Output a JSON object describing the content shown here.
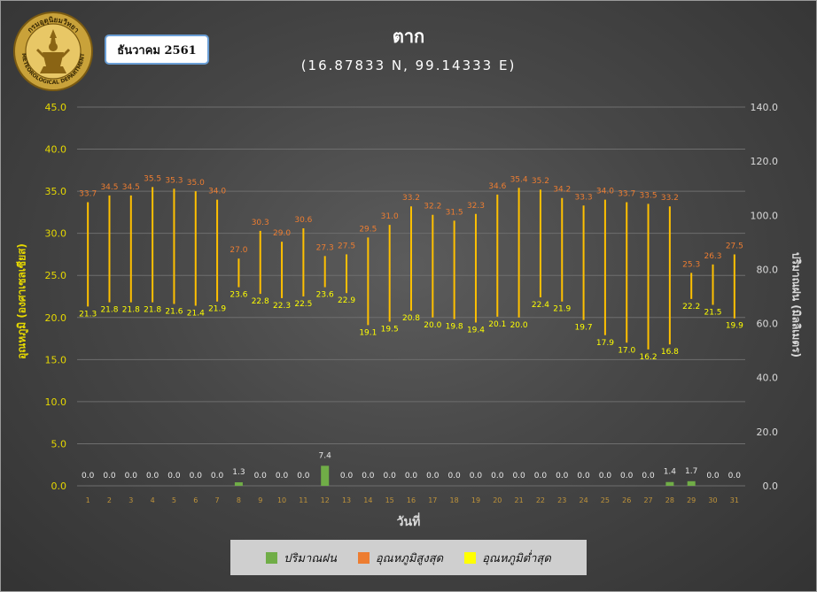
{
  "header": {
    "month_label": "ธันวาคม 2561",
    "station": "ตาก",
    "coordinates": "(16.87833 N, 99.14333 E)"
  },
  "logo": {
    "top_text": "กรมอุตุนิยมวิทยา",
    "bottom_text": "METEOROLOGICAL DEPARTMENT"
  },
  "colors": {
    "rain": "#70ad47",
    "tmax": "#ed7d31",
    "tmin": "#ffff00",
    "range_line": "#ffc000",
    "left_axis": "#e6d800",
    "right_axis": "#d9d9d9",
    "grid": "#6e6e6e"
  },
  "chart_data": {
    "type": "bar",
    "title": "ตาก",
    "subtitle": "(16.87833 N, 99.14333 E)",
    "xlabel": "วันที่",
    "ylabel_left": "อุณหภูมิ (องศาเซลเซียส)",
    "ylabel_right": "ปริมาณฝน (มิลลิเมตร)",
    "ylim_left": [
      0,
      45
    ],
    "yticks_left": [
      "0.0",
      "5.0",
      "10.0",
      "15.0",
      "20.0",
      "25.0",
      "30.0",
      "35.0",
      "40.0",
      "45.0"
    ],
    "ylim_right": [
      0,
      140
    ],
    "yticks_right": [
      "0.0",
      "20.0",
      "40.0",
      "60.0",
      "80.0",
      "100.0",
      "120.0",
      "140.0"
    ],
    "grid": true,
    "legend_position": "bottom",
    "categories": [
      "1",
      "2",
      "3",
      "4",
      "5",
      "6",
      "7",
      "8",
      "9",
      "10",
      "11",
      "12",
      "13",
      "14",
      "15",
      "16",
      "17",
      "18",
      "19",
      "20",
      "21",
      "22",
      "23",
      "24",
      "25",
      "26",
      "27",
      "28",
      "29",
      "30",
      "31"
    ],
    "series": [
      {
        "name": "ปริมาณฝน",
        "type": "bar",
        "axis": "right",
        "values": [
          0.0,
          0.0,
          0.0,
          0.0,
          0.0,
          0.0,
          0.0,
          1.3,
          0.0,
          0.0,
          0.0,
          7.4,
          0.0,
          0.0,
          0.0,
          0.0,
          0.0,
          0.0,
          0.0,
          0.0,
          0.0,
          0.0,
          0.0,
          0.0,
          0.0,
          0.0,
          0.0,
          1.4,
          1.7,
          0.0,
          0.0
        ],
        "labels": [
          "0.0",
          "0.0",
          "0.0",
          "0.0",
          "0.0",
          "0.0",
          "0.0",
          "1.3",
          "0.0",
          "0.0",
          "0.0",
          "7.4",
          "0.0",
          "0.0",
          "0.0",
          "0.0",
          "0.0",
          "0.0",
          "0.0",
          "0.0",
          "0.0",
          "0.0",
          "0.0",
          "0.0",
          "0.0",
          "0.0",
          "0.0",
          "1.4",
          "1.7",
          "0.0",
          "0.0"
        ]
      },
      {
        "name": "อุณหภูมิสูงสุด",
        "type": "range-top",
        "axis": "left",
        "values": [
          33.7,
          34.5,
          34.5,
          35.5,
          35.3,
          35.0,
          34.0,
          27.0,
          30.3,
          29.0,
          30.6,
          27.3,
          27.5,
          29.5,
          31.0,
          33.2,
          32.2,
          31.5,
          32.3,
          34.6,
          35.4,
          35.2,
          34.2,
          33.3,
          34.0,
          33.7,
          33.5,
          33.2,
          25.3,
          26.3,
          27.5
        ],
        "labels": [
          "33.7",
          "34.5",
          "34.5",
          "35.5",
          "35.3",
          "35.0",
          "34.0",
          "27.0",
          "30.3",
          "29.0",
          "30.6",
          "27.3",
          "27.5",
          "29.5",
          "31.0",
          "33.2",
          "32.2",
          "31.5",
          "32.3",
          "34.6",
          "35.4",
          "35.2",
          "34.2",
          "33.3",
          "34.0",
          "33.7",
          "33.5",
          "33.2",
          "25.3",
          "26.3",
          "27.5"
        ]
      },
      {
        "name": "อุณหภูมิต่ำสุด",
        "type": "range-bottom",
        "axis": "left",
        "values": [
          21.3,
          21.8,
          21.8,
          21.8,
          21.6,
          21.4,
          21.9,
          23.6,
          22.8,
          22.3,
          22.5,
          23.6,
          22.9,
          19.1,
          19.5,
          20.8,
          20.0,
          19.8,
          19.4,
          20.1,
          20.0,
          22.4,
          21.9,
          19.7,
          17.9,
          17.0,
          16.2,
          16.8,
          22.2,
          21.5,
          19.9
        ],
        "labels": [
          "21.3",
          "21.8",
          "21.8",
          "21.8",
          "21.6",
          "21.4",
          "21.9",
          "23.6",
          "22.8",
          "22.3",
          "22.5",
          "23.6",
          "22.9",
          "19.1",
          "19.5",
          "20.8",
          "20.0",
          "19.8",
          "19.4",
          "20.1",
          "20.0",
          "22.4",
          "21.9",
          "19.7",
          "17.9",
          "17.0",
          "16.2",
          "16.8",
          "22.2",
          "21.5",
          "19.9"
        ]
      }
    ]
  }
}
